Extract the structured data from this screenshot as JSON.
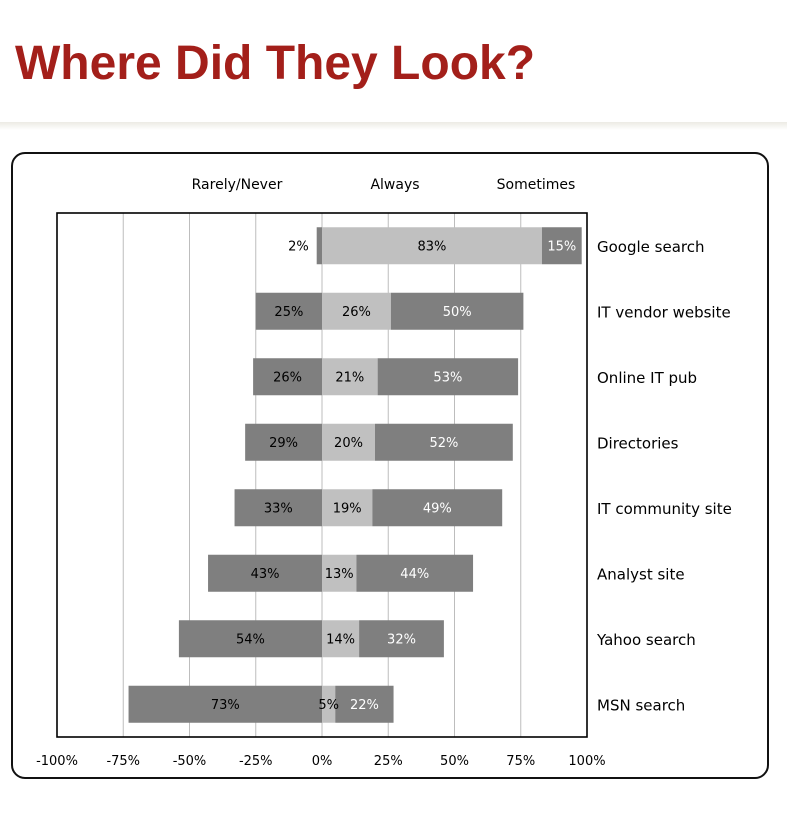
{
  "page": {
    "title": "Where Did They Look?"
  },
  "chart_data": {
    "type": "bar",
    "orientation": "horizontal-diverging",
    "categories": [
      "Google search",
      "IT vendor website",
      "Online IT pub",
      "Directories",
      "IT community site",
      "Analyst site",
      "Yahoo search",
      "MSN search"
    ],
    "series": [
      {
        "name": "Rarely/Never",
        "values": [
          2,
          25,
          26,
          29,
          33,
          43,
          54,
          73
        ],
        "labels": [
          "2%",
          "25%",
          "26%",
          "29%",
          "33%",
          "43%",
          "54%",
          "73%"
        ],
        "color": "#7f7f7f"
      },
      {
        "name": "Always",
        "values": [
          83,
          26,
          21,
          20,
          19,
          13,
          14,
          5
        ],
        "labels": [
          "83%",
          "26%",
          "21%",
          "20%",
          "19%",
          "13%",
          "14%",
          "5%"
        ],
        "color": "#c0c0c0"
      },
      {
        "name": "Sometimes",
        "values": [
          15,
          50,
          53,
          52,
          49,
          44,
          32,
          22
        ],
        "labels": [
          "15%",
          "50%",
          "53%",
          "52%",
          "49%",
          "44%",
          "32%",
          "22%"
        ],
        "color": "#7f7f7f"
      }
    ],
    "xlim": [
      -100,
      100
    ],
    "xticks": [
      -100,
      -75,
      -50,
      -25,
      0,
      25,
      50,
      75,
      100
    ],
    "xtick_labels": [
      "-100%",
      "-75%",
      "-50%",
      "-25%",
      "0%",
      "25%",
      "50%",
      "75%",
      "100%"
    ],
    "xlabel": "",
    "ylabel": "",
    "grid": "vertical",
    "legend": "top"
  }
}
